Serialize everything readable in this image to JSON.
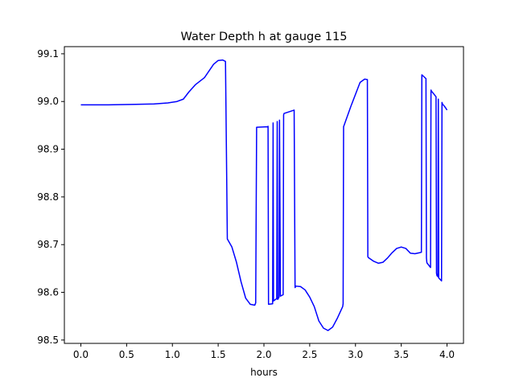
{
  "chart_data": {
    "type": "line",
    "title": "Water Depth h at gauge 115",
    "xlabel": "hours",
    "ylabel": "",
    "xlim": [
      -0.18,
      4.18
    ],
    "ylim": [
      98.493,
      99.115
    ],
    "grid": false,
    "legend": "none",
    "color": "#0000ff",
    "xticks": [
      0.0,
      0.5,
      1.0,
      1.5,
      2.0,
      2.5,
      3.0,
      3.5,
      4.0
    ],
    "xtick_labels": [
      "0.0",
      "0.5",
      "1.0",
      "1.5",
      "2.0",
      "2.5",
      "3.0",
      "3.5",
      "4.0"
    ],
    "yticks": [
      98.5,
      98.6,
      98.7,
      98.8,
      98.9,
      99.0,
      99.1
    ],
    "ytick_labels": [
      "98.5",
      "98.6",
      "98.7",
      "98.8",
      "98.9",
      "99.0",
      "99.1"
    ],
    "series": [
      {
        "x": [
          0.0,
          0.3,
          0.6,
          0.8,
          0.95,
          1.05,
          1.12,
          1.18,
          1.25,
          1.35,
          1.45,
          1.5,
          1.55,
          1.57,
          1.58,
          1.6,
          1.65,
          1.7,
          1.75,
          1.8,
          1.85,
          1.9,
          1.91,
          1.92,
          2.04,
          2.045,
          2.05,
          2.095,
          2.1,
          2.105,
          2.14,
          2.145,
          2.15,
          2.165,
          2.17,
          2.18,
          2.21,
          2.215,
          2.22,
          2.33,
          2.34,
          2.35,
          2.4,
          2.45,
          2.5,
          2.55,
          2.6,
          2.65,
          2.7,
          2.75,
          2.8,
          2.86,
          2.865,
          2.87,
          2.95,
          3.05,
          3.1,
          3.13,
          3.135,
          3.14,
          3.2,
          3.25,
          3.3,
          3.35,
          3.4,
          3.45,
          3.5,
          3.55,
          3.6,
          3.65,
          3.7,
          3.72,
          3.725,
          3.77,
          3.775,
          3.78,
          3.82,
          3.825,
          3.83,
          3.88,
          3.885,
          3.89,
          3.9,
          3.905,
          3.91,
          3.94,
          3.945,
          3.95,
          3.98,
          4.0
        ],
        "values": [
          98.993,
          98.993,
          98.994,
          98.995,
          98.997,
          99.0,
          99.005,
          99.02,
          99.035,
          99.05,
          99.078,
          99.086,
          99.087,
          99.085,
          99.084,
          98.712,
          98.695,
          98.663,
          98.622,
          98.588,
          98.575,
          98.573,
          98.578,
          98.946,
          98.947,
          98.948,
          98.575,
          98.576,
          98.955,
          98.582,
          98.587,
          98.958,
          98.585,
          98.59,
          98.961,
          98.592,
          98.595,
          98.972,
          98.975,
          98.982,
          98.61,
          98.613,
          98.612,
          98.605,
          98.59,
          98.57,
          98.54,
          98.525,
          98.52,
          98.527,
          98.545,
          98.57,
          98.576,
          98.947,
          98.99,
          99.04,
          99.047,
          99.046,
          98.675,
          98.673,
          98.665,
          98.661,
          98.663,
          98.672,
          98.683,
          98.692,
          98.695,
          98.692,
          98.682,
          98.681,
          98.683,
          98.684,
          99.056,
          99.048,
          98.672,
          98.662,
          98.652,
          99.024,
          99.022,
          99.01,
          98.64,
          98.635,
          98.633,
          99.005,
          98.63,
          98.624,
          98.998,
          98.995,
          98.988,
          98.982
        ]
      }
    ]
  }
}
